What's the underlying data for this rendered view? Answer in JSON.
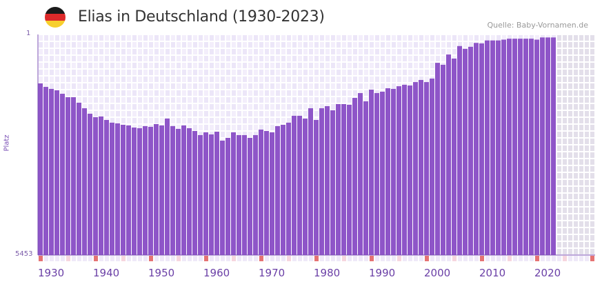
{
  "header": {
    "title": "Elias in Deutschland (1930-2023)",
    "source": "Quelle: Baby-Vornamen.de",
    "flag_colors": [
      "#1a1a1a",
      "#dd2a2a",
      "#f7cf2e"
    ]
  },
  "colors": {
    "bar": "#8e55c8",
    "axis": "#7b4fb5",
    "cell_a": "#f3eefb",
    "cell_b": "#ece6f8",
    "future": "#e3dfea",
    "decade_marker": "#e57373",
    "half_marker": "#f6d6de",
    "year_marker": "#efe9f8"
  },
  "chart_data": {
    "type": "bar",
    "title": "Elias in Deutschland (1930-2023)",
    "xlabel": "",
    "ylabel": "Platz",
    "y_axis": {
      "top": 1,
      "bottom": 5453,
      "inverted": true,
      "ticks": [
        "1",
        "5453"
      ]
    },
    "x_range": [
      1930,
      2030
    ],
    "x_ticks": [
      "1930",
      "1940",
      "1950",
      "1960",
      "1970",
      "1980",
      "1990",
      "2000",
      "2010",
      "2020"
    ],
    "grid": true,
    "years": [
      1930,
      1931,
      1932,
      1933,
      1934,
      1935,
      1936,
      1937,
      1938,
      1939,
      1940,
      1941,
      1942,
      1943,
      1944,
      1945,
      1946,
      1947,
      1948,
      1949,
      1950,
      1951,
      1952,
      1953,
      1954,
      1955,
      1956,
      1957,
      1958,
      1959,
      1960,
      1961,
      1962,
      1963,
      1964,
      1965,
      1966,
      1967,
      1968,
      1969,
      1970,
      1971,
      1972,
      1973,
      1974,
      1975,
      1976,
      1977,
      1978,
      1979,
      1980,
      1981,
      1982,
      1983,
      1984,
      1985,
      1986,
      1987,
      1988,
      1989,
      1990,
      1991,
      1992,
      1993,
      1994,
      1995,
      1996,
      1997,
      1998,
      1999,
      2000,
      2001,
      2002,
      2003,
      2004,
      2005,
      2006,
      2007,
      2008,
      2009,
      2010,
      2011,
      2012,
      2013,
      2014,
      2015,
      2016,
      2017,
      2018,
      2019,
      2020,
      2021,
      2022,
      2023
    ],
    "ranks": [
      268,
      308,
      332,
      349,
      394,
      441,
      441,
      522,
      610,
      704,
      767,
      754,
      819,
      872,
      886,
      914,
      928,
      971,
      985,
      942,
      956,
      900,
      928,
      793,
      942,
      999,
      928,
      985,
      1044,
      1135,
      1074,
      1120,
      1059,
      1263,
      1198,
      1074,
      1135,
      1135,
      1198,
      1135,
      1014,
      1044,
      1074,
      942,
      914,
      872,
      741,
      741,
      793,
      610,
      819,
      610,
      576,
      644,
      543,
      543,
      554,
      451,
      385,
      501,
      341,
      385,
      367,
      324,
      332,
      300,
      284,
      292,
      254,
      232,
      254,
      218,
      90,
      103,
      45,
      65,
      15,
      23,
      17,
      8,
      9,
      4,
      4,
      4,
      3,
      2,
      2,
      2,
      2,
      2,
      3,
      1,
      1,
      1
    ]
  }
}
